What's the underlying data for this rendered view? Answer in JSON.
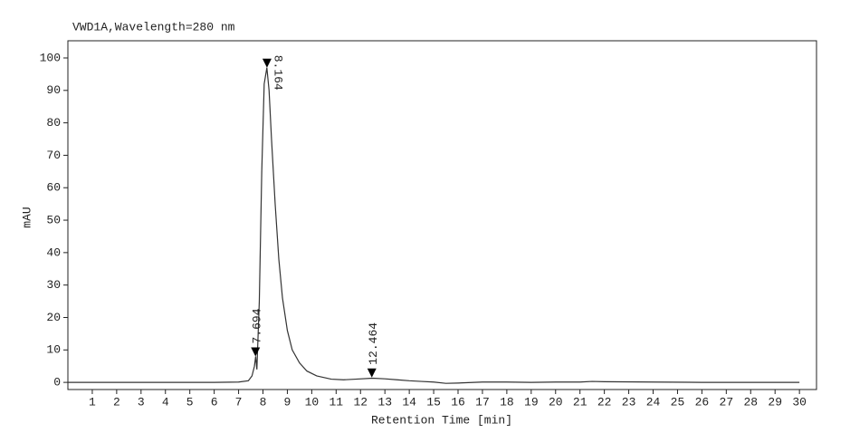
{
  "chart_data": {
    "type": "line",
    "title": "VWD1A,Wavelength=280 nm",
    "xlabel": "Retention Time [min]",
    "ylabel": "mAU",
    "x": [
      0,
      2,
      4,
      6,
      7,
      7.4,
      7.55,
      7.65,
      7.7,
      7.75,
      7.85,
      7.95,
      8.05,
      8.16,
      8.25,
      8.35,
      8.5,
      8.65,
      8.8,
      9,
      9.2,
      9.5,
      9.8,
      10.2,
      10.8,
      11.3,
      11.8,
      12.5,
      13,
      13.5,
      14,
      14.5,
      15,
      15.5,
      16,
      17,
      18,
      19,
      20,
      21,
      21.5,
      22,
      24,
      26,
      28,
      30
    ],
    "series": [
      {
        "color": "#333333",
        "values": [
          0,
          0,
          0,
          0,
          0.1,
          0.5,
          2,
          5,
          8,
          4,
          25,
          65,
          92,
          97,
          90,
          75,
          55,
          38,
          26,
          16,
          10,
          6,
          3.5,
          2,
          1,
          0.8,
          1,
          1.3,
          1.1,
          0.8,
          0.5,
          0.3,
          0.1,
          -0.3,
          -0.2,
          0.1,
          0.1,
          0,
          0.1,
          0.1,
          0.3,
          0.2,
          0.1,
          0,
          0,
          0
        ]
      }
    ],
    "peaks": [
      {
        "x": 7.694,
        "y": 8
      },
      {
        "x": 8.164,
        "y": 97
      },
      {
        "x": 12.464,
        "y": 1.5
      }
    ],
    "xlim": [
      0,
      30.7
    ],
    "ylim": [
      -2.2,
      105.3
    ],
    "xticks": [
      1,
      2,
      3,
      4,
      5,
      6,
      7,
      8,
      9,
      10,
      11,
      12,
      13,
      14,
      15,
      16,
      17,
      18,
      19,
      20,
      21,
      22,
      23,
      24,
      25,
      26,
      27,
      28,
      29,
      30
    ],
    "yticks": [
      0,
      10,
      20,
      30,
      40,
      50,
      60,
      70,
      80,
      90,
      100
    ]
  }
}
